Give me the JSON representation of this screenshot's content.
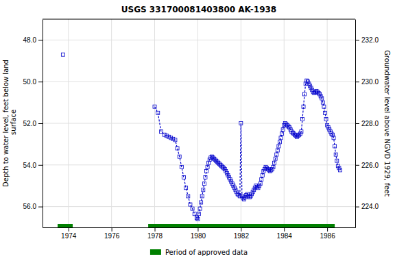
{
  "chart_data": {
    "type": "line",
    "title": "USGS 331700081403800 AK-1938",
    "y_label": "Depth to water level, feet below land\n surface",
    "y2_label": "Groundwater level above NGVD 1929, feet",
    "xlim": [
      1972.8,
      1987.3
    ],
    "xticks": [
      1974,
      1976,
      1978,
      1980,
      1982,
      1984,
      1986
    ],
    "ylim": [
      57.0,
      47.0
    ],
    "yticks": [
      {
        "value": 48.0,
        "label": "48.0"
      },
      {
        "value": 50.0,
        "label": "50.0"
      },
      {
        "value": 52.0,
        "label": "52.0"
      },
      {
        "value": 54.0,
        "label": "54.0"
      },
      {
        "value": 56.0,
        "label": "56.0"
      }
    ],
    "y2lim": [
      223.0,
      233.0
    ],
    "y2ticks": [
      {
        "value": 232.0,
        "label": "232.0"
      },
      {
        "value": 230.0,
        "label": "230.0"
      },
      {
        "value": 228.0,
        "label": "228.0"
      },
      {
        "value": 226.0,
        "label": "226.0"
      },
      {
        "value": 224.0,
        "label": "224.0"
      }
    ],
    "grid": true,
    "legend": "bottom",
    "series": [
      {
        "color": "#0000cc",
        "marker": "square",
        "line_style": "dashed",
        "x": [
          1973.75
        ],
        "values": [
          48.7
        ]
      },
      {
        "color": "#0000cc",
        "marker": "square",
        "line_style": "dashed",
        "x": [
          1978.0,
          1978.15,
          1978.3,
          1978.45,
          1978.55,
          1978.65,
          1978.75,
          1978.85,
          1978.95,
          1979.05,
          1979.15,
          1979.25,
          1979.35,
          1979.45,
          1979.55,
          1979.65,
          1979.75,
          1979.85,
          1979.95,
          1980.0,
          1980.05,
          1980.1,
          1980.15,
          1980.2,
          1980.25,
          1980.3,
          1980.35,
          1980.4,
          1980.45,
          1980.5,
          1980.55,
          1980.6,
          1980.65,
          1980.7,
          1980.75,
          1980.8,
          1980.85,
          1980.9,
          1980.95,
          1981.0,
          1981.05,
          1981.1,
          1981.15,
          1981.2,
          1981.25,
          1981.3,
          1981.35,
          1981.4,
          1981.45,
          1981.5,
          1981.55,
          1981.6,
          1981.65,
          1981.7,
          1981.75,
          1981.8,
          1981.85,
          1981.9,
          1981.95,
          1982.0,
          1982.05,
          1982.1,
          1982.15,
          1982.2,
          1982.25,
          1982.3,
          1982.35,
          1982.4,
          1982.45,
          1982.5,
          1982.55,
          1982.6,
          1982.65,
          1982.7,
          1982.75,
          1982.8,
          1982.85,
          1982.9,
          1982.95,
          1983.0,
          1983.05,
          1983.1,
          1983.15,
          1983.2,
          1983.25,
          1983.3,
          1983.35,
          1983.4,
          1983.45,
          1983.5,
          1983.55,
          1983.6,
          1983.65,
          1983.7,
          1983.75,
          1983.8,
          1983.85,
          1983.9,
          1983.95,
          1984.0,
          1984.05,
          1984.1,
          1984.15,
          1984.2,
          1984.25,
          1984.3,
          1984.35,
          1984.4,
          1984.45,
          1984.5,
          1984.55,
          1984.6,
          1984.65,
          1984.7,
          1984.75,
          1984.8,
          1984.85,
          1984.9,
          1984.95,
          1985.0,
          1985.05,
          1985.1,
          1985.15,
          1985.2,
          1985.25,
          1985.3,
          1985.35,
          1985.4,
          1985.45,
          1985.5,
          1985.55,
          1985.6,
          1985.65,
          1985.7,
          1985.75,
          1985.8,
          1985.85,
          1985.9,
          1985.95,
          1986.0,
          1986.05,
          1986.1,
          1986.15,
          1986.2,
          1986.25,
          1986.3,
          1986.35,
          1986.4,
          1986.45,
          1986.5,
          1986.55,
          1986.6
        ],
        "values": [
          51.2,
          51.5,
          52.4,
          52.55,
          52.6,
          52.65,
          52.7,
          52.75,
          52.8,
          53.2,
          53.6,
          54.1,
          54.6,
          55.1,
          55.5,
          55.9,
          56.1,
          56.35,
          56.55,
          56.6,
          56.35,
          56.1,
          55.8,
          55.5,
          55.2,
          54.9,
          54.6,
          54.3,
          54.1,
          53.9,
          53.75,
          53.65,
          53.6,
          53.65,
          53.7,
          53.75,
          53.8,
          53.85,
          53.9,
          53.95,
          54.0,
          54.05,
          54.1,
          54.15,
          54.2,
          54.3,
          54.4,
          54.5,
          54.6,
          54.7,
          54.8,
          54.9,
          55.0,
          55.1,
          55.2,
          55.3,
          55.4,
          55.45,
          55.5,
          52.0,
          55.5,
          55.6,
          55.65,
          55.55,
          55.45,
          55.4,
          55.5,
          55.55,
          55.5,
          55.4,
          55.3,
          55.2,
          55.1,
          55.0,
          55.05,
          55.1,
          55.0,
          54.9,
          54.7,
          54.5,
          54.3,
          54.2,
          54.1,
          54.15,
          54.2,
          54.25,
          54.3,
          54.25,
          54.2,
          54.1,
          53.9,
          53.7,
          53.5,
          53.3,
          53.1,
          52.9,
          52.7,
          52.5,
          52.3,
          52.1,
          52.0,
          52.05,
          52.1,
          52.15,
          52.2,
          52.3,
          52.4,
          52.45,
          52.5,
          52.55,
          52.6,
          52.65,
          52.6,
          52.55,
          52.5,
          52.4,
          51.8,
          51.2,
          50.6,
          50.1,
          49.95,
          50.0,
          50.1,
          50.2,
          50.3,
          50.4,
          50.5,
          50.55,
          50.5,
          50.45,
          50.5,
          50.55,
          50.6,
          50.7,
          50.8,
          51.0,
          51.2,
          51.5,
          51.8,
          52.1,
          52.2,
          52.3,
          52.4,
          52.5,
          52.55,
          52.7,
          53.1,
          53.5,
          53.8,
          54.05,
          54.15,
          54.25
        ]
      }
    ],
    "spans": [
      {
        "name": "Period of approved data",
        "color": "#008000",
        "ranges": [
          [
            1973.5,
            1974.2
          ],
          [
            1977.7,
            1986.35
          ]
        ]
      }
    ]
  }
}
